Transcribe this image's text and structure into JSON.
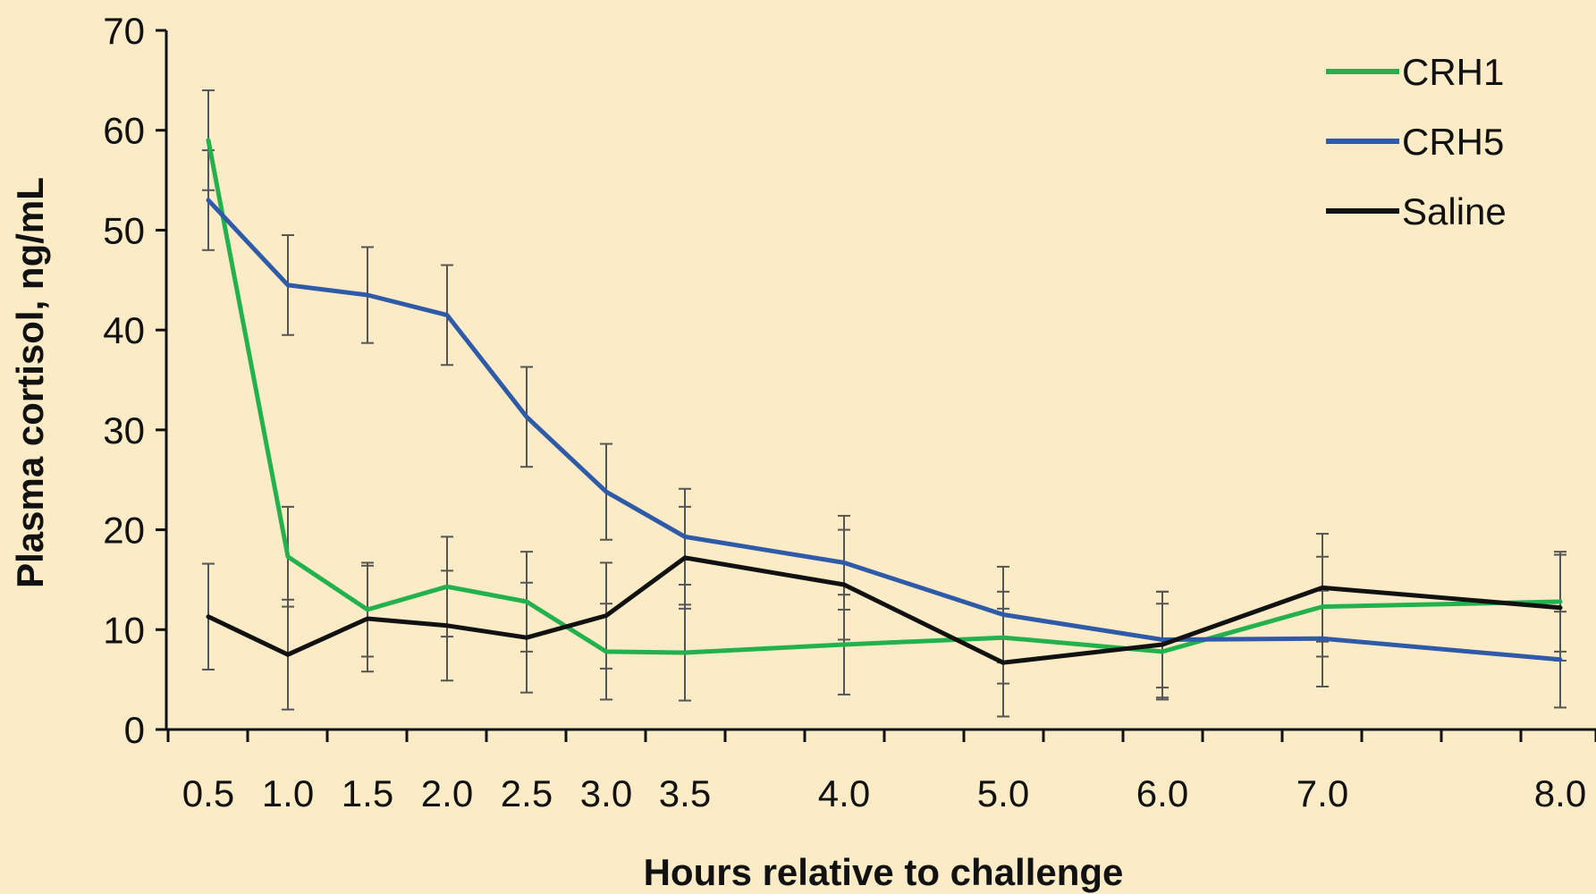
{
  "chart_data": {
    "type": "line",
    "categories": [
      "0.5",
      "1.0",
      "1.5",
      "2.0",
      "2.5",
      "3.0",
      "3.5",
      "4.0",
      "5.0",
      "6.0",
      "7.0",
      "8.0"
    ],
    "xlabel": "Hours relative to challenge",
    "ylabel": "Plasma cortisol, ng/mL",
    "ylim": [
      0,
      70
    ],
    "yticks": [
      "0",
      "10",
      "20",
      "30",
      "40",
      "50",
      "60",
      "70"
    ],
    "grid": false,
    "legend_position": "top-right",
    "series": [
      {
        "name": "CRH1",
        "color": "#22b14c",
        "values": [
          59,
          17.3,
          12,
          14.3,
          12.8,
          7.8,
          7.7,
          8.5,
          9.2,
          7.8,
          12.3,
          12.8
        ],
        "errors": [
          5,
          5,
          4.7,
          5,
          5,
          4.8,
          4.8,
          5,
          4.6,
          4.8,
          5,
          5
        ]
      },
      {
        "name": "CRH5",
        "color": "#2f5aa8",
        "values": [
          53,
          44.5,
          43.5,
          41.5,
          31.3,
          23.8,
          19.3,
          16.7,
          11.5,
          9,
          9.1,
          7
        ],
        "errors": [
          5,
          5,
          4.8,
          5,
          5,
          4.8,
          4.8,
          4.7,
          4.8,
          4.8,
          4.8,
          4.8
        ]
      },
      {
        "name": "Saline",
        "color": "#111111",
        "values": [
          11.3,
          7.5,
          11.1,
          10.4,
          9.2,
          11.4,
          17.2,
          14.5,
          6.7,
          8.5,
          14.2,
          12.2
        ],
        "errors": [
          5.3,
          5.5,
          5.3,
          5.5,
          5.5,
          5.3,
          5.1,
          5.5,
          5.4,
          5.3,
          5.4,
          5.3
        ]
      }
    ]
  }
}
